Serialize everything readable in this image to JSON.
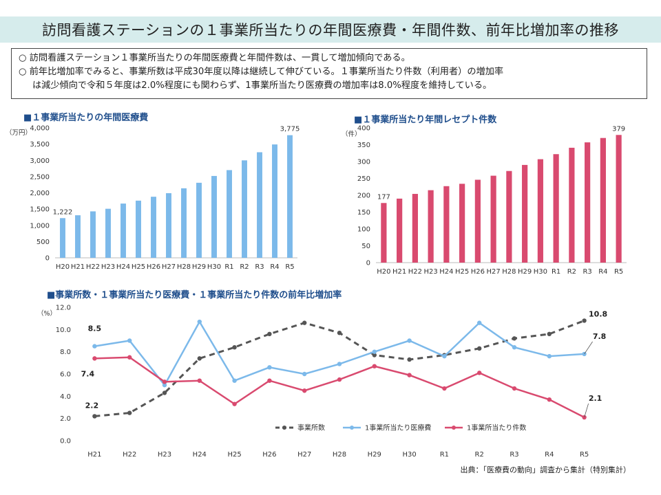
{
  "page": {
    "title": "訪問看護ステーションの１事業所当たりの年間医療費・年間件数、前年比増加率の推移",
    "summary": [
      "○ 訪問看護ステーション１事業所当たりの年間医療費と年間件数は、一貫して増加傾向である。",
      "○ 前年比増加率でみると、事業所数は平成30年度以降は継続して伸びている。１事業所当たり件数（利用者）の増加率",
      "は減少傾向で令和５年度は2.0%程度にも関わらず、1事業所当たり医療費の増加率は8.0%程度を維持している。"
    ],
    "source": "出典：「医療費の動向」調査から集計（特別集計）"
  },
  "chart_data": [
    {
      "type": "bar",
      "title": "■１事業所当たりの年間医療費",
      "unit": "（万円）",
      "categories": [
        "H20",
        "H21",
        "H22",
        "H23",
        "H24",
        "H25",
        "H26",
        "H27",
        "H28",
        "H29",
        "H30",
        "R1",
        "R2",
        "R3",
        "R4",
        "R5"
      ],
      "values": [
        1222,
        1310,
        1430,
        1510,
        1670,
        1760,
        1880,
        1990,
        2140,
        2310,
        2520,
        2700,
        3000,
        3250,
        3490,
        3775
      ],
      "ylim": [
        0,
        4000
      ],
      "yticks": [
        "0",
        "500",
        "1,000",
        "1,500",
        "2,000",
        "2,500",
        "3,000",
        "3,500",
        "4,000"
      ],
      "data_labels": [
        {
          "index": 0,
          "text": "1,222"
        },
        {
          "index": 15,
          "text": "3,775"
        }
      ],
      "color": "#7cb9ea"
    },
    {
      "type": "bar",
      "title": "■１事業所当たり年間レセプト件数",
      "unit": "（件）",
      "categories": [
        "H20",
        "H21",
        "H22",
        "H23",
        "H24",
        "H25",
        "H26",
        "H27",
        "H28",
        "H29",
        "H30",
        "R1",
        "R2",
        "R3",
        "R4",
        "R5"
      ],
      "values": [
        177,
        190,
        204,
        215,
        227,
        234,
        246,
        258,
        272,
        290,
        307,
        322,
        341,
        357,
        370,
        379
      ],
      "ylim": [
        0,
        400
      ],
      "yticks": [
        "0",
        "50",
        "100",
        "150",
        "200",
        "250",
        "300",
        "350",
        "400"
      ],
      "data_labels": [
        {
          "index": 0,
          "text": "177"
        },
        {
          "index": 15,
          "text": "379"
        }
      ],
      "color": "#d94a6f"
    },
    {
      "type": "line",
      "title": "■事業所数・１事業所当たり医療費・１事業所当たり件数の前年比増加率",
      "unit": "（%）",
      "categories": [
        "H21",
        "H22",
        "H23",
        "H24",
        "H25",
        "H26",
        "H27",
        "H28",
        "H29",
        "H30",
        "R1",
        "R2",
        "R3",
        "R4",
        "R5"
      ],
      "ylim": [
        0,
        12
      ],
      "yticks": [
        "0.0",
        "2.0",
        "4.0",
        "6.0",
        "8.0",
        "10.0",
        "12.0"
      ],
      "series": [
        {
          "name": "事業所数",
          "color": "#555555",
          "dashed": true,
          "values": [
            2.2,
            2.5,
            4.3,
            7.4,
            8.4,
            9.6,
            10.6,
            9.7,
            7.7,
            7.3,
            7.7,
            8.3,
            9.2,
            9.6,
            10.8
          ]
        },
        {
          "name": "1事業所当たり医療費",
          "color": "#7cb9ea",
          "dashed": false,
          "values": [
            8.5,
            9.0,
            5.0,
            10.7,
            5.4,
            6.6,
            6.0,
            6.9,
            8.0,
            9.0,
            7.6,
            10.6,
            8.4,
            7.6,
            7.8
          ]
        },
        {
          "name": "1事業所当たり件数",
          "color": "#d94a6f",
          "dashed": false,
          "values": [
            7.4,
            7.5,
            5.3,
            5.4,
            3.3,
            5.4,
            4.5,
            5.5,
            6.7,
            5.9,
            4.7,
            6.1,
            4.7,
            3.7,
            2.1
          ]
        }
      ],
      "data_labels": [
        {
          "series": 1,
          "index": 0,
          "text": "8.5"
        },
        {
          "series": 2,
          "index": 0,
          "text": "7.4"
        },
        {
          "series": 0,
          "index": 0,
          "text": "2.2"
        },
        {
          "series": 0,
          "index": 14,
          "text": "10.8"
        },
        {
          "series": 1,
          "index": 14,
          "text": "7.8"
        },
        {
          "series": 2,
          "index": 14,
          "text": "2.1"
        }
      ],
      "legend": "bottom-right"
    }
  ]
}
